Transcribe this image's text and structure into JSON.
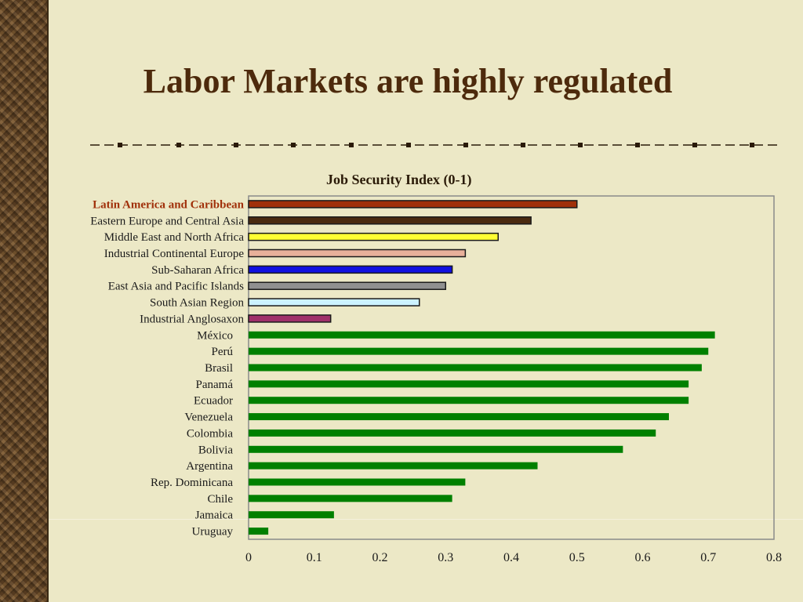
{
  "slide": {
    "title": "Labor Markets are highly regulated"
  },
  "chart_data": {
    "type": "bar",
    "orientation": "horizontal",
    "title": "Job Security Index (0-1)",
    "xlim": [
      0,
      0.8
    ],
    "xticks": [
      "0",
      "0.1",
      "0.2",
      "0.3",
      "0.4",
      "0.5",
      "0.6",
      "0.7",
      "0.8"
    ],
    "grid": false,
    "categories": [
      "Latin America and Caribbean",
      "Eastern Europe and Central Asia",
      "Middle East and North Africa",
      "Industrial Continental Europe",
      "Sub-Saharan Africa",
      "East Asia and Pacific Islands",
      "South Asian Region",
      "Industrial Anglosaxon",
      "México",
      "Perú",
      "Brasil",
      "Panamá",
      "Ecuador",
      "Venezuela",
      "Colombia",
      "Bolivia",
      "Argentina",
      "Rep. Dominicana",
      "Chile",
      "Jamaica",
      "Uruguay"
    ],
    "values": [
      0.5,
      0.43,
      0.38,
      0.33,
      0.31,
      0.3,
      0.26,
      0.125,
      0.71,
      0.7,
      0.69,
      0.67,
      0.67,
      0.64,
      0.62,
      0.57,
      0.44,
      0.33,
      0.31,
      0.13,
      0.03
    ],
    "colors": [
      "#a0300a",
      "#4a2a10",
      "#ffff33",
      "#e8b09a",
      "#1010e0",
      "#909090",
      "#ccf2ff",
      "#a0306a",
      "#008000",
      "#008000",
      "#008000",
      "#008000",
      "#008000",
      "#008000",
      "#008000",
      "#008000",
      "#008000",
      "#008000",
      "#008000",
      "#008000",
      "#008000"
    ],
    "highlight_label_color": "#a0300a"
  }
}
